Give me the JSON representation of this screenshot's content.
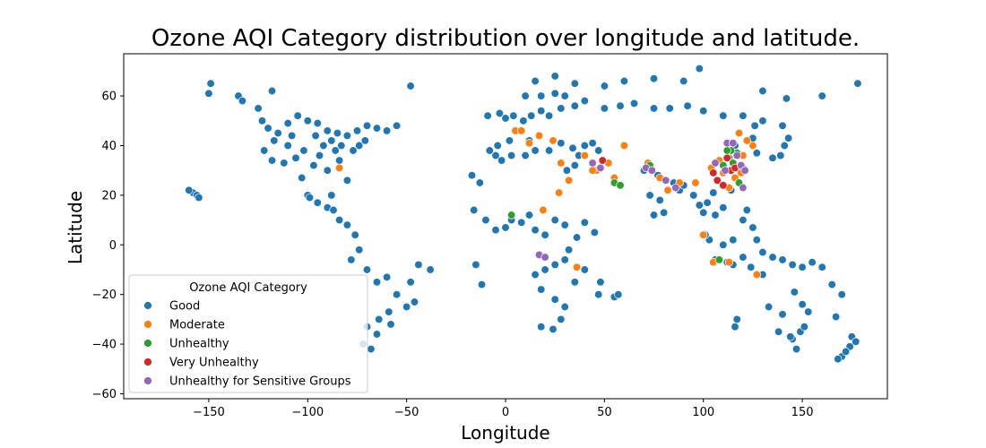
{
  "chart_data": {
    "type": "scatter",
    "title": "Ozone AQI Category distribution over longitude and latitude.",
    "xlabel": "Longitude",
    "ylabel": "Latitude",
    "xlim": [
      -193,
      193
    ],
    "ylim": [
      -62,
      77
    ],
    "xticks": [
      -150,
      -100,
      -50,
      0,
      50,
      100,
      150
    ],
    "yticks": [
      -60,
      -40,
      -20,
      0,
      20,
      40,
      60
    ],
    "xtick_labels": [
      "−150",
      "−100",
      "−50",
      "0",
      "50",
      "100",
      "150"
    ],
    "ytick_labels": [
      "−60",
      "−40",
      "−20",
      "0",
      "20",
      "40",
      "60"
    ],
    "grid": false,
    "legend": {
      "title": "Ozone AQI Category",
      "placement": "lower-left"
    },
    "series": [
      {
        "name": "Good",
        "color": "#1f77b4",
        "points": [
          [
            -149,
            65
          ],
          [
            -150,
            61
          ],
          [
            -135,
            60
          ],
          [
            -133,
            58
          ],
          [
            -125,
            55
          ],
          [
            -118,
            62
          ],
          [
            -123,
            50
          ],
          [
            -120,
            47
          ],
          [
            -115,
            45
          ],
          [
            -110,
            49
          ],
          [
            -105,
            52
          ],
          [
            -100,
            50
          ],
          [
            -95,
            49
          ],
          [
            -90,
            46
          ],
          [
            -85,
            45
          ],
          [
            -80,
            44
          ],
          [
            -75,
            46
          ],
          [
            -70,
            48
          ],
          [
            -65,
            47
          ],
          [
            -60,
            46
          ],
          [
            -55,
            48
          ],
          [
            -122,
            38
          ],
          [
            -118,
            34
          ],
          [
            -112,
            33
          ],
          [
            -106,
            35
          ],
          [
            -97,
            32
          ],
          [
            -90,
            30
          ],
          [
            -84,
            34
          ],
          [
            -80,
            26
          ],
          [
            -77,
            38
          ],
          [
            -74,
            40
          ],
          [
            -71,
            42
          ],
          [
            -100,
            20
          ],
          [
            -99,
            19
          ],
          [
            -95,
            17
          ],
          [
            -90,
            15
          ],
          [
            -87,
            14
          ],
          [
            -84,
            10
          ],
          [
            -80,
            8
          ],
          [
            -76,
            4
          ],
          [
            -74,
            -2
          ],
          [
            -78,
            -6
          ],
          [
            -70,
            -10
          ],
          [
            -65,
            -15
          ],
          [
            -60,
            -13
          ],
          [
            -55,
            -20
          ],
          [
            -48,
            -15
          ],
          [
            -44,
            -8
          ],
          [
            -38,
            -10
          ],
          [
            -50,
            -25
          ],
          [
            -58,
            -32
          ],
          [
            -65,
            -36
          ],
          [
            -70,
            -33
          ],
          [
            -72,
            -40
          ],
          [
            -68,
            -42
          ],
          [
            -64,
            -30
          ],
          [
            -59,
            -27
          ],
          [
            -46,
            -23
          ],
          [
            -158,
            21
          ],
          [
            -156,
            20
          ],
          [
            -160,
            22
          ],
          [
            -155,
            19
          ],
          [
            -48,
            64
          ],
          [
            -110,
            40
          ],
          [
            -102,
            38
          ],
          [
            -92,
            40
          ],
          [
            -86,
            38
          ],
          [
            -83,
            40
          ],
          [
            -96,
            44
          ],
          [
            -117,
            42
          ],
          [
            -108,
            44
          ],
          [
            -94,
            36
          ],
          [
            -88,
            42
          ],
          [
            -103,
            27
          ],
          [
            -88,
            20
          ],
          [
            -9,
            52
          ],
          [
            -3,
            53
          ],
          [
            0,
            51
          ],
          [
            4,
            52
          ],
          [
            9,
            50
          ],
          [
            13,
            52
          ],
          [
            18,
            54
          ],
          [
            22,
            52
          ],
          [
            28,
            55
          ],
          [
            35,
            56
          ],
          [
            40,
            58
          ],
          [
            50,
            55
          ],
          [
            58,
            56
          ],
          [
            65,
            57
          ],
          [
            75,
            55
          ],
          [
            83,
            55
          ],
          [
            92,
            56
          ],
          [
            100,
            54
          ],
          [
            110,
            52
          ],
          [
            120,
            52
          ],
          [
            130,
            50
          ],
          [
            140,
            48
          ],
          [
            10,
            60
          ],
          [
            18,
            60
          ],
          [
            25,
            61
          ],
          [
            30,
            60
          ],
          [
            15,
            66
          ],
          [
            25,
            68
          ],
          [
            35,
            65
          ],
          [
            50,
            64
          ],
          [
            60,
            66
          ],
          [
            75,
            67
          ],
          [
            90,
            66
          ],
          [
            98,
            71
          ],
          [
            130,
            62
          ],
          [
            142,
            59
          ],
          [
            160,
            60
          ],
          [
            -4,
            40
          ],
          [
            2,
            42
          ],
          [
            12,
            42
          ],
          [
            15,
            38
          ],
          [
            22,
            38
          ],
          [
            28,
            41
          ],
          [
            34,
            39
          ],
          [
            40,
            40
          ],
          [
            44,
            41
          ],
          [
            47,
            38
          ],
          [
            -8,
            38
          ],
          [
            -5,
            36
          ],
          [
            -2,
            34
          ],
          [
            3,
            36
          ],
          [
            10,
            36
          ],
          [
            31,
            30
          ],
          [
            35,
            32
          ],
          [
            37,
            36
          ],
          [
            -17,
            28
          ],
          [
            -13,
            25
          ],
          [
            -16,
            14
          ],
          [
            -10,
            10
          ],
          [
            -5,
            6
          ],
          [
            0,
            7
          ],
          [
            3,
            10
          ],
          [
            8,
            9
          ],
          [
            12,
            12
          ],
          [
            15,
            6
          ],
          [
            20,
            4
          ],
          [
            25,
            10
          ],
          [
            30,
            8
          ],
          [
            36,
            3
          ],
          [
            40,
            9
          ],
          [
            45,
            5
          ],
          [
            32,
            -2
          ],
          [
            30,
            -6
          ],
          [
            25,
            -8
          ],
          [
            20,
            -10
          ],
          [
            15,
            -12
          ],
          [
            18,
            -18
          ],
          [
            25,
            -22
          ],
          [
            30,
            -25
          ],
          [
            28,
            -30
          ],
          [
            24,
            -34
          ],
          [
            18,
            -33
          ],
          [
            35,
            -15
          ],
          [
            40,
            -10
          ],
          [
            47,
            -20
          ],
          [
            55,
            -21
          ],
          [
            48,
            -15
          ],
          [
            -15,
            -8
          ],
          [
            -12,
            -16
          ],
          [
            57,
            -20
          ],
          [
            70,
            30
          ],
          [
            73,
            20
          ],
          [
            77,
            28
          ],
          [
            80,
            13
          ],
          [
            75,
            12
          ],
          [
            78,
            18
          ],
          [
            85,
            25
          ],
          [
            88,
            22
          ],
          [
            90,
            24
          ],
          [
            95,
            20
          ],
          [
            98,
            16
          ],
          [
            100,
            13
          ],
          [
            102,
            17
          ],
          [
            105,
            21
          ],
          [
            106,
            12
          ],
          [
            110,
            15
          ],
          [
            103,
            2
          ],
          [
            101,
            4
          ],
          [
            106,
            -6
          ],
          [
            112,
            -7
          ],
          [
            115,
            -8
          ],
          [
            120,
            -5
          ],
          [
            124,
            -9
          ],
          [
            110,
            0
          ],
          [
            115,
            2
          ],
          [
            120,
            10
          ],
          [
            122,
            14
          ],
          [
            125,
            7
          ],
          [
            127,
            2
          ],
          [
            130,
            -3
          ],
          [
            135,
            -5
          ],
          [
            140,
            -6
          ],
          [
            145,
            -8
          ],
          [
            150,
            -9
          ],
          [
            155,
            -7
          ],
          [
            160,
            -9
          ],
          [
            114,
            22
          ],
          [
            120,
            31
          ],
          [
            116,
            40
          ],
          [
            125,
            43
          ],
          [
            127,
            37
          ],
          [
            135,
            35
          ],
          [
            139,
            36
          ],
          [
            141,
            40
          ],
          [
            143,
            43
          ],
          [
            126,
            48
          ],
          [
            117,
            -30
          ],
          [
            116,
            -33
          ],
          [
            130,
            -12
          ],
          [
            133,
            -25
          ],
          [
            138,
            -35
          ],
          [
            145,
            -38
          ],
          [
            149,
            -35
          ],
          [
            151,
            -33
          ],
          [
            153,
            -27
          ],
          [
            146,
            -19
          ],
          [
            144,
            -37
          ],
          [
            147,
            -42
          ],
          [
            175,
            -37
          ],
          [
            174,
            -41
          ],
          [
            170,
            -45
          ],
          [
            168,
            -46
          ],
          [
            172,
            -43
          ],
          [
            177,
            -39
          ],
          [
            178,
            65
          ],
          [
            165,
            -16
          ],
          [
            167,
            -29
          ],
          [
            170,
            -20
          ],
          [
            150,
            -24
          ],
          [
            140,
            -28
          ]
        ]
      },
      {
        "name": "Moderate",
        "color": "#ff7f0e",
        "points": [
          [
            -84,
            31
          ],
          [
            5,
            46
          ],
          [
            8,
            46
          ],
          [
            12,
            41
          ],
          [
            17,
            44
          ],
          [
            24,
            42
          ],
          [
            28,
            33
          ],
          [
            32,
            26
          ],
          [
            27,
            21
          ],
          [
            40,
            36
          ],
          [
            46,
            30
          ],
          [
            52,
            33
          ],
          [
            55,
            27
          ],
          [
            72,
            33
          ],
          [
            78,
            27
          ],
          [
            82,
            22
          ],
          [
            88,
            25
          ],
          [
            104,
            31
          ],
          [
            108,
            34
          ],
          [
            113,
            23
          ],
          [
            116,
            27
          ],
          [
            120,
            36
          ],
          [
            125,
            40
          ],
          [
            122,
            42
          ],
          [
            118,
            45
          ],
          [
            113,
            -7
          ],
          [
            105,
            -7
          ],
          [
            100,
            4
          ],
          [
            127,
            -12
          ],
          [
            36,
            -9
          ],
          [
            19,
            14
          ],
          [
            60,
            40
          ],
          [
            44,
            30
          ],
          [
            96,
            25
          ],
          [
            110,
            29
          ],
          [
            119,
            29
          ]
        ]
      },
      {
        "name": "Unhealthy",
        "color": "#2ca02c",
        "points": [
          [
            3,
            12
          ],
          [
            55,
            25
          ],
          [
            58,
            24
          ],
          [
            73,
            32
          ],
          [
            110,
            32
          ],
          [
            113,
            35
          ],
          [
            115,
            33
          ],
          [
            117,
            37
          ],
          [
            114,
            38
          ],
          [
            118,
            25
          ],
          [
            108,
            -6
          ],
          [
            112,
            38
          ]
        ]
      },
      {
        "name": "Very Unhealthy",
        "color": "#d62728",
        "points": [
          [
            49,
            34
          ],
          [
            105,
            29
          ],
          [
            107,
            26
          ],
          [
            110,
            24
          ],
          [
            114,
            30
          ],
          [
            116,
            31
          ],
          [
            112,
            35
          ]
        ]
      },
      {
        "name": "Unhealthy for Sensitive Groups",
        "color": "#9467bd",
        "points": [
          [
            17,
            -4
          ],
          [
            20,
            -5
          ],
          [
            44,
            33
          ],
          [
            48,
            31
          ],
          [
            71,
            31
          ],
          [
            74,
            30
          ],
          [
            81,
            26
          ],
          [
            86,
            23
          ],
          [
            106,
            33
          ],
          [
            112,
            41
          ],
          [
            115,
            41
          ],
          [
            117,
            36
          ],
          [
            119,
            32
          ],
          [
            121,
            30
          ],
          [
            120,
            23
          ],
          [
            111,
            30
          ]
        ]
      }
    ]
  }
}
